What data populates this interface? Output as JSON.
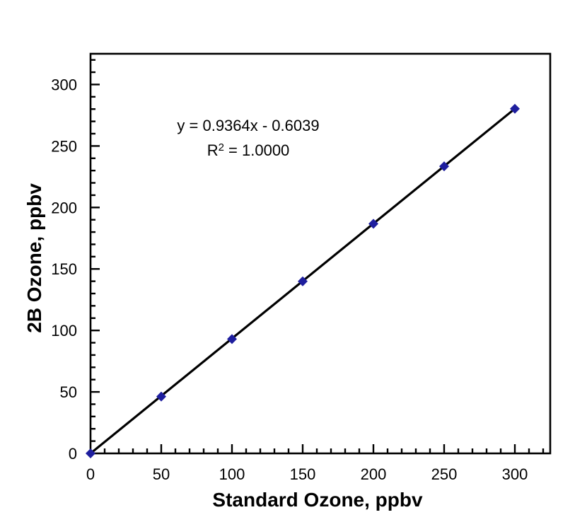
{
  "chart_data": {
    "type": "scatter",
    "title": "",
    "xlabel": "Standard Ozone, ppbv",
    "ylabel": "2B Ozone, ppbv",
    "x": [
      0,
      50,
      100,
      150,
      200,
      250,
      300
    ],
    "y": [
      0,
      46.2,
      93.0,
      139.9,
      186.7,
      233.5,
      280.3
    ],
    "xlim": [
      0,
      325
    ],
    "ylim": [
      0,
      325
    ],
    "x_major_ticks": [
      0,
      50,
      100,
      150,
      200,
      250,
      300
    ],
    "y_major_ticks": [
      0,
      50,
      100,
      150,
      200,
      250,
      300
    ],
    "x_tick_labels": [
      "0",
      "50",
      "100",
      "150",
      "200",
      "250",
      "300"
    ],
    "y_tick_labels": [
      "0",
      "50",
      "100",
      "150",
      "200",
      "250",
      "300"
    ],
    "minor_tick_step": 10,
    "grid": false,
    "legend_position": "none",
    "marker": {
      "shape": "diamond",
      "color": "#1e1e9e",
      "size": 7
    },
    "line": {
      "color": "#000000",
      "width": 3.2
    },
    "axis_color": "#000000",
    "text_color": "#000000",
    "background_color": "#ffffff",
    "trendline": {
      "slope": 0.9364,
      "intercept": -0.6039,
      "equation_label": "y = 0.9364x - 0.6039",
      "r2_prefix": "R",
      "r2_sup": "2",
      "r2_suffix": " = 1.0000",
      "r2_value": "1.0000"
    }
  }
}
